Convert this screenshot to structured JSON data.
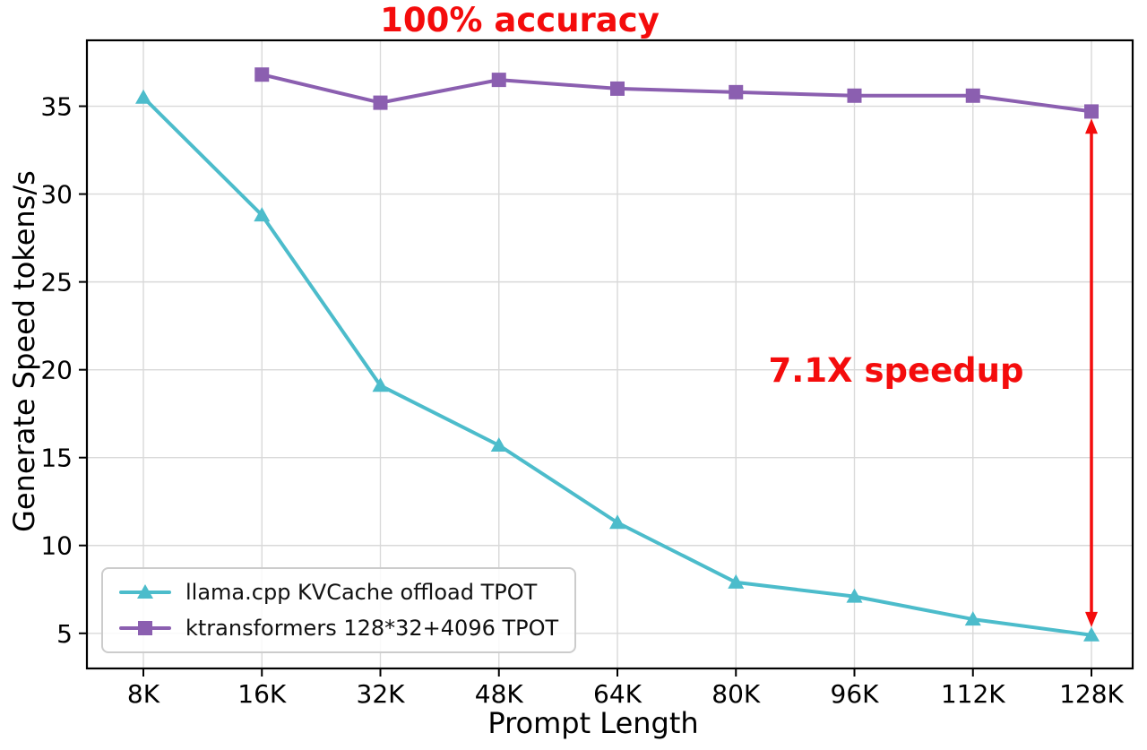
{
  "chart_data": {
    "type": "line",
    "categories": [
      "8K",
      "16K",
      "32K",
      "48K",
      "64K",
      "80K",
      "96K",
      "112K",
      "128K"
    ],
    "series": [
      {
        "name": "llama.cpp KVCache offload TPOT",
        "color": "#4cbccb",
        "marker": "triangle",
        "values": [
          35.5,
          28.8,
          19.1,
          15.7,
          11.3,
          7.9,
          7.1,
          5.8,
          4.9
        ]
      },
      {
        "name": "ktransformers 128*32+4096 TPOT",
        "color": "#8b5fb0",
        "marker": "square",
        "values": [
          null,
          36.8,
          35.2,
          36.5,
          36.0,
          35.8,
          35.6,
          35.6,
          34.7
        ]
      }
    ],
    "xlabel": "Prompt Length",
    "ylabel": "Generate Speed tokens/s",
    "yticks": [
      5,
      10,
      15,
      20,
      25,
      30,
      35
    ],
    "ylim": [
      3.0,
      38.75
    ],
    "grid": true,
    "legend_position": "lower left",
    "annotations": {
      "top": {
        "text": "100% accuracy",
        "color": "#f40c0c"
      },
      "speedup": {
        "text": "7.1X speedup",
        "color": "#f40c0c"
      },
      "arrow": {
        "x_index": 8,
        "y_from": 34.3,
        "y_to": 5.35,
        "color": "#f40c0c"
      }
    }
  }
}
